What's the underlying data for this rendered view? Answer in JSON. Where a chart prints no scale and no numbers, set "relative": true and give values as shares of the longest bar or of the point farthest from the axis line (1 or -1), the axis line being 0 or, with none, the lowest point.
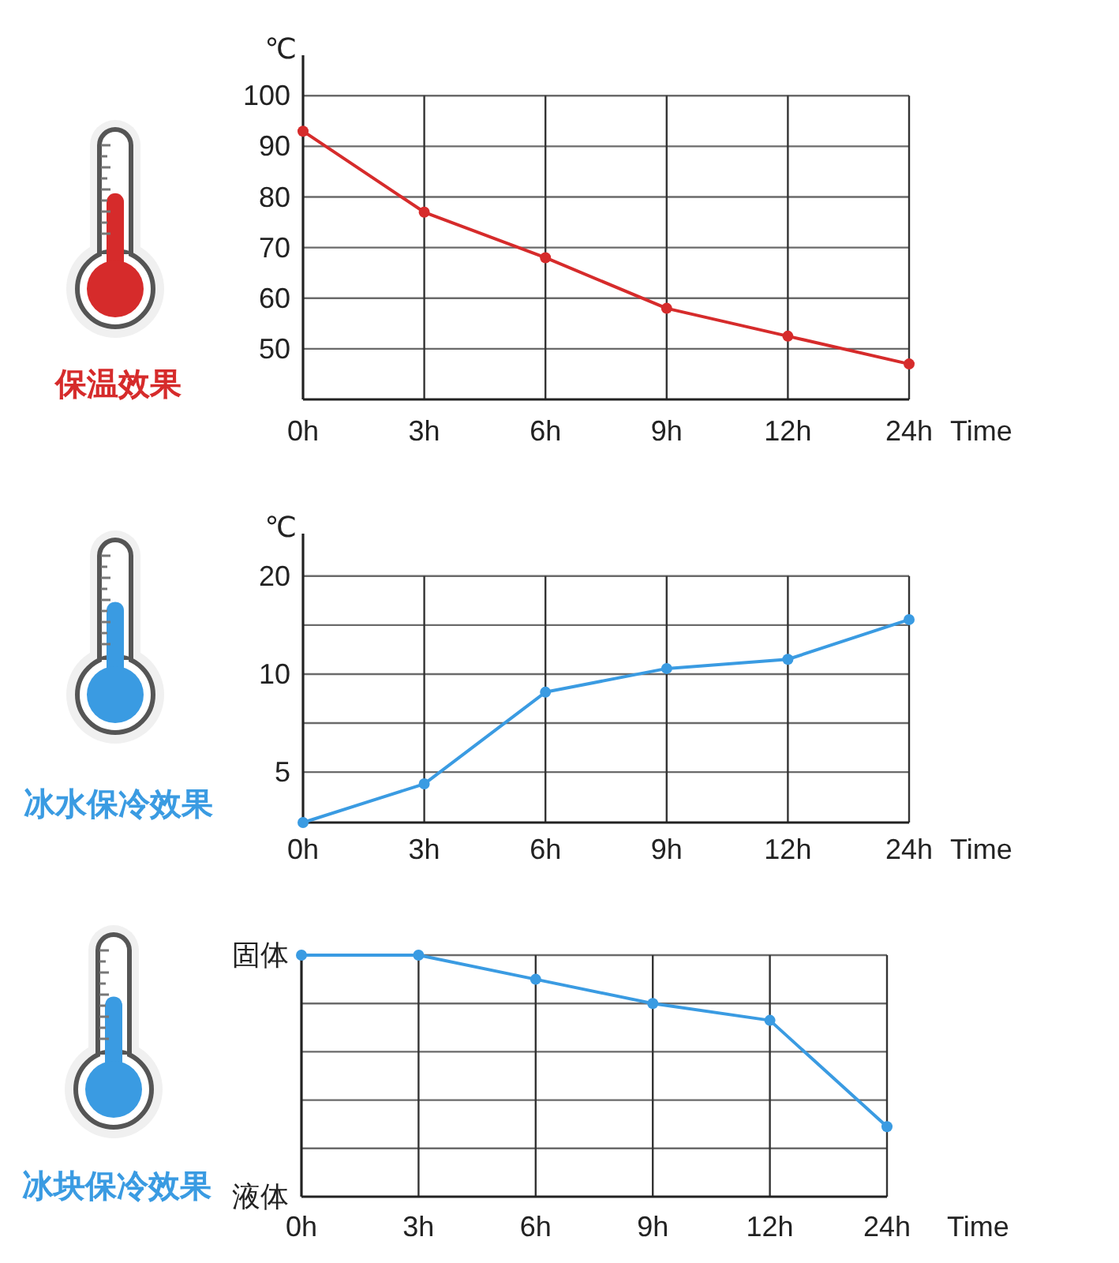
{
  "chart_data": [
    {
      "type": "line",
      "title": "保温效果",
      "ylabel": "℃",
      "xlabel": "Time",
      "categories": [
        "0h",
        "3h",
        "6h",
        "9h",
        "12h",
        "24h"
      ],
      "series": [
        {
          "color": "#d62b2b",
          "values": [
            93,
            77,
            68,
            58,
            52.5,
            47
          ]
        }
      ],
      "ylim": [
        40,
        108
      ],
      "yticks": [
        50,
        60,
        70,
        80,
        90,
        100
      ],
      "grid": true,
      "marker": "circle"
    },
    {
      "type": "line",
      "title": "冰水保冷效果",
      "ylabel": "℃",
      "xlabel": "Time",
      "categories": [
        "0h",
        "3h",
        "6h",
        "9h",
        "12h",
        "24h"
      ],
      "series": [
        {
          "color": "#3a9be2",
          "values": [
            3.5,
            4.6,
            8.8,
            10.4,
            11.1,
            14.7
          ]
        }
      ],
      "log": "y",
      "ylim": [
        3.5,
        27
      ],
      "yticks": [
        5,
        {
          "value": 7.07,
          "label": null
        },
        10,
        {
          "value": 14.14,
          "label": null
        },
        20
      ],
      "grid": true,
      "marker": "circle"
    },
    {
      "type": "line",
      "title": "冰块保冷效果",
      "xlabel": "Time",
      "categories": [
        "0h",
        "3h",
        "6h",
        "9h",
        "12h",
        "24h"
      ],
      "series": [
        {
          "color": "#3a9be2",
          "values": [
            1,
            1,
            0.9,
            0.8,
            0.73,
            0.29
          ]
        }
      ],
      "relative": true,
      "annotations": [
        "固体",
        "液体"
      ],
      "grid": true,
      "marker": "circle"
    }
  ]
}
